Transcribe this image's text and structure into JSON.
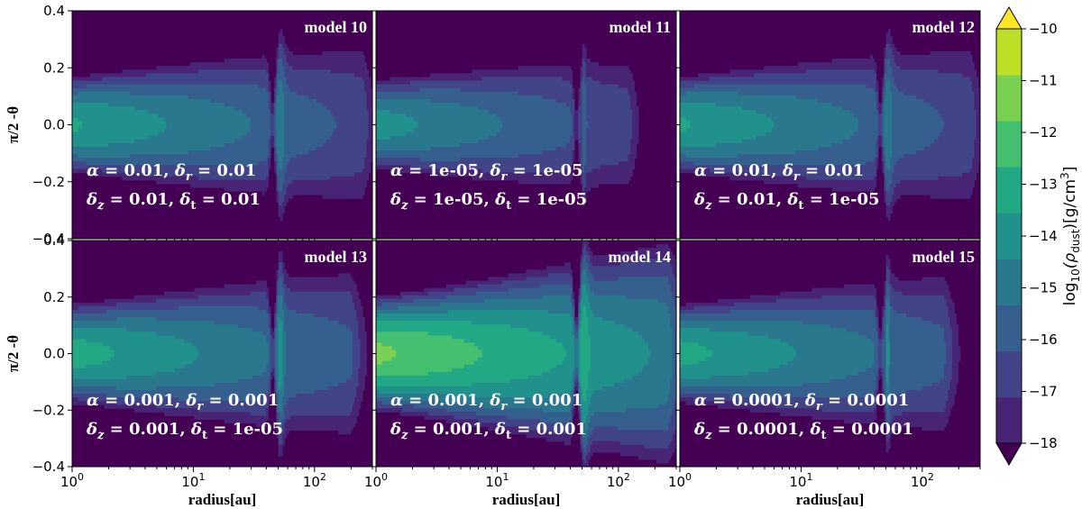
{
  "chart_data": {
    "type": "heatmap",
    "description_kind": "filled contour grid of dust density",
    "x_axis": {
      "label": "radius[au]",
      "scale": "log",
      "range": [
        1,
        300
      ],
      "ticks": [
        {
          "value": 1,
          "base": "10",
          "exp": "0"
        },
        {
          "value": 10,
          "base": "10",
          "exp": "1"
        },
        {
          "value": 100,
          "base": "10",
          "exp": "2"
        }
      ]
    },
    "y_axis": {
      "label": "π/2 -θ",
      "range": [
        -0.4,
        0.4
      ],
      "ticks": [
        {
          "value": 0.4,
          "label": "0.4"
        },
        {
          "value": 0.2,
          "label": "0.2"
        },
        {
          "value": 0.0,
          "label": "0.0"
        },
        {
          "value": -0.2,
          "label": "−0.2"
        },
        {
          "value": -0.4,
          "label": "−0.4"
        }
      ]
    },
    "colorbar": {
      "label_prefix": "log",
      "label_sub": "10",
      "label_rho": "(ρ",
      "label_rho_sub": "dust",
      "label_unit": ")[g/cm",
      "label_unit_sup": "3",
      "label_end": "]",
      "range": [
        -18,
        -10
      ],
      "ticks": [
        {
          "value": -10,
          "label": "−10"
        },
        {
          "value": -11,
          "label": "−11"
        },
        {
          "value": -12,
          "label": "−12"
        },
        {
          "value": -13,
          "label": "−13"
        },
        {
          "value": -14,
          "label": "−14"
        },
        {
          "value": -15,
          "label": "−15"
        },
        {
          "value": -16,
          "label": "−16"
        },
        {
          "value": -17,
          "label": "−17"
        },
        {
          "value": -18,
          "label": "−18"
        }
      ],
      "colors": [
        "#440154",
        "#482475",
        "#414487",
        "#355f8d",
        "#2a788e",
        "#21918c",
        "#22a884",
        "#44bf70",
        "#7ad151",
        "#bddf26",
        "#fde725"
      ]
    },
    "panels": [
      {
        "title": "model 10",
        "alpha": "0.01",
        "delta_r": "0.01",
        "delta_z": "0.01",
        "delta_t": "0.01",
        "peak": -13.5,
        "gap_radius_au": 45,
        "ring_radius_au": 52,
        "ring_strength": 1.0,
        "ring_width": 0.04,
        "outer_au": 250
      },
      {
        "title": "model 11",
        "alpha": "1e-05",
        "delta_r": "1e-05",
        "delta_z": "1e-05",
        "delta_t": "1e-05",
        "peak": -14.0,
        "gap_radius_au": 45,
        "ring_radius_au": 52,
        "ring_strength": 1.0,
        "ring_width": 0.012,
        "outer_au": 120
      },
      {
        "title": "model 12",
        "alpha": "0.01",
        "delta_r": "0.01",
        "delta_z": "0.01",
        "delta_t": "1e-05",
        "peak": -13.5,
        "gap_radius_au": 45,
        "ring_radius_au": 52,
        "ring_strength": 1.0,
        "ring_width": 0.04,
        "outer_au": 250
      },
      {
        "title": "model 13",
        "alpha": "0.001",
        "delta_r": "0.001",
        "delta_z": "0.001",
        "delta_t": "1e-05",
        "peak": -13.2,
        "gap_radius_au": 45,
        "ring_radius_au": 52,
        "ring_strength": 1.3,
        "ring_width": 0.03,
        "outer_au": 200
      },
      {
        "title": "model 14",
        "alpha": "0.001",
        "delta_r": "0.001",
        "delta_z": "0.001",
        "delta_t": "0.001",
        "peak": -11.8,
        "gap_radius_au": 45,
        "ring_radius_au": 52,
        "ring_strength": 1.0,
        "ring_width": 0.04,
        "outer_au": 250
      },
      {
        "title": "model 15",
        "alpha": "0.0001",
        "delta_r": "0.0001",
        "delta_z": "0.0001",
        "delta_t": "0.0001",
        "peak": -13.3,
        "gap_radius_au": 45,
        "ring_radius_au": 52,
        "ring_strength": 1.4,
        "ring_width": 0.015,
        "outer_au": 150
      }
    ],
    "param_text": {
      "alpha_sym": "α = ",
      "dr_sym": "δ",
      "dr_sub": "r",
      "dz_sym": "δ",
      "dz_sub": "z",
      "dt_sym": "δ",
      "dt_sub": "t",
      "eq": " = ",
      "sep": ", "
    }
  }
}
